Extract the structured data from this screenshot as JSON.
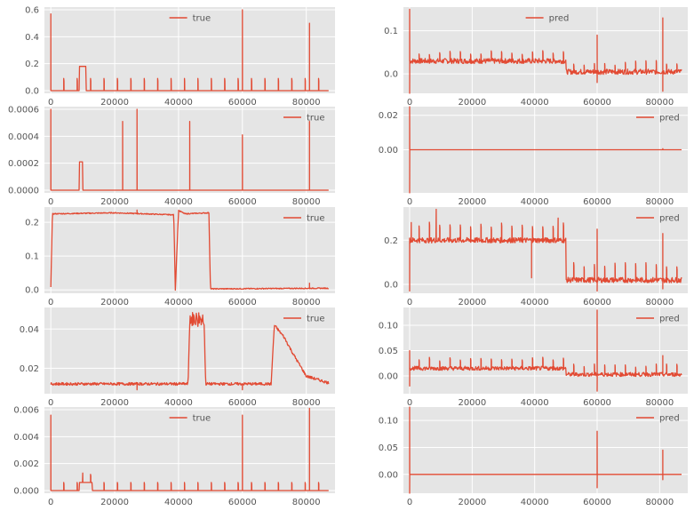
{
  "colors": {
    "background": "#e5e5e5",
    "grid": "#ffffff",
    "line": "#e24a33",
    "tick_text": "#555555",
    "legend_text": "#222222"
  },
  "chart_data": [
    {
      "type": "line",
      "series_name": "true",
      "legend_position": "top-center",
      "xlim": [
        -2000,
        89000
      ],
      "ylim": [
        -0.02,
        0.62
      ],
      "xticks": [
        0,
        20000,
        40000,
        60000,
        80000
      ],
      "xtick_labels": [
        "0",
        "20000",
        "40000",
        "60000",
        "80000"
      ],
      "yticks": [
        0.0,
        0.2,
        0.4,
        0.6
      ],
      "ytick_labels": [
        "0.0",
        "0.2",
        "0.4",
        "0.6"
      ],
      "pattern": {
        "base": 0.0,
        "spikes": [
          [
            0,
            0.57
          ],
          [
            60000,
            0.6
          ],
          [
            81000,
            0.5
          ]
        ],
        "steps": [
          [
            9000,
            11000,
            0.18
          ]
        ],
        "period": 4200,
        "period_amp": 0.09,
        "period_start": 4000
      }
    },
    {
      "type": "line",
      "series_name": "pred",
      "legend_position": "top-center",
      "xlim": [
        -2000,
        89000
      ],
      "ylim": [
        -0.045,
        0.155
      ],
      "xticks": [
        0,
        20000,
        40000,
        60000,
        80000
      ],
      "xtick_labels": [
        "0",
        "20000",
        "40000",
        "60000",
        "80000"
      ],
      "yticks": [
        0.0,
        0.1
      ],
      "ytick_labels": [
        "0.0",
        "0.1"
      ],
      "pattern": {
        "base": 0.03,
        "base2": 0.005,
        "switch_x": 50000,
        "noise": 0.006,
        "spikes": [
          [
            0,
            0.15
          ],
          [
            0,
            -0.045
          ],
          [
            60000,
            -0.02
          ],
          [
            60000,
            0.09
          ],
          [
            81000,
            0.13
          ],
          [
            81000,
            -0.04
          ]
        ],
        "period": 3300,
        "period_amp": 0.02,
        "period_start": 3000
      }
    },
    {
      "type": "line",
      "series_name": "true",
      "legend_position": "top-right",
      "xlim": [
        -2000,
        89000
      ],
      "ylim": [
        -2e-05,
        0.00062
      ],
      "xticks": [
        0,
        20000,
        40000,
        60000,
        80000
      ],
      "xtick_labels": [
        "0",
        "20000",
        "40000",
        "60000",
        "80000"
      ],
      "yticks": [
        0.0,
        0.0002,
        0.0004,
        0.0006
      ],
      "ytick_labels": [
        "0.0000",
        "0.0002",
        "0.0004",
        "0.0006"
      ],
      "pattern": {
        "base": 0.0,
        "spikes": [
          [
            0,
            0.0006
          ],
          [
            22500,
            0.00051
          ],
          [
            27000,
            0.0006
          ],
          [
            43500,
            0.00051
          ],
          [
            60000,
            0.00041
          ],
          [
            81000,
            0.00051
          ]
        ],
        "steps": [
          [
            9000,
            10000,
            0.00021
          ]
        ]
      }
    },
    {
      "type": "line",
      "series_name": "pred",
      "legend_position": "top-right",
      "xlim": [
        -2000,
        89000
      ],
      "ylim": [
        -0.025,
        0.025
      ],
      "xticks": [
        0,
        20000,
        40000,
        60000,
        80000
      ],
      "xtick_labels": [
        "0",
        "20000",
        "40000",
        "60000",
        "80000"
      ],
      "yticks": [
        0.0,
        0.02
      ],
      "ytick_labels": [
        "0.00",
        "0.02"
      ],
      "pattern": {
        "base": 0.0,
        "spikes": [
          [
            0,
            0.025
          ],
          [
            0,
            -0.025
          ],
          [
            81000,
            0.0006
          ]
        ]
      }
    },
    {
      "type": "line",
      "series_name": "true",
      "legend_position": "top-right",
      "xlim": [
        -2000,
        89000
      ],
      "ylim": [
        -0.01,
        0.245
      ],
      "xticks": [
        0,
        20000,
        40000,
        60000,
        80000
      ],
      "xtick_labels": [
        "0",
        "20000",
        "40000",
        "60000",
        "80000"
      ],
      "yticks": [
        0.0,
        0.1,
        0.2
      ],
      "ytick_labels": [
        "0.0",
        "0.1",
        "0.2"
      ],
      "pattern": {
        "piecewise": [
          [
            0,
            0.01
          ],
          [
            500,
            0.225
          ],
          [
            20000,
            0.228
          ],
          [
            38500,
            0.222
          ],
          [
            39000,
            0.0
          ],
          [
            40000,
            0.235
          ],
          [
            42000,
            0.225
          ],
          [
            49500,
            0.228
          ],
          [
            50000,
            0.003
          ],
          [
            88000,
            0.005
          ]
        ],
        "noise": 0.0015,
        "spikes": [
          [
            27000,
            0.236
          ],
          [
            81000,
            0.02
          ]
        ]
      }
    },
    {
      "type": "line",
      "series_name": "pred",
      "legend_position": "top-right",
      "xlim": [
        -2000,
        89000
      ],
      "ylim": [
        -0.04,
        0.35
      ],
      "xticks": [
        0,
        20000,
        40000,
        60000,
        80000
      ],
      "xtick_labels": [
        "0",
        "20000",
        "40000",
        "60000",
        "80000"
      ],
      "yticks": [
        0.0,
        0.2
      ],
      "ytick_labels": [
        "0.0",
        "0.2"
      ],
      "pattern": {
        "base": 0.2,
        "base2": 0.02,
        "switch_x": 50000,
        "noise": 0.012,
        "spikes": [
          [
            0,
            -0.03
          ],
          [
            500,
            0.28
          ],
          [
            8500,
            0.34
          ],
          [
            39000,
            0.03
          ],
          [
            47500,
            0.3
          ],
          [
            60000,
            0.25
          ],
          [
            60000,
            -0.03
          ],
          [
            81000,
            0.23
          ],
          [
            81000,
            -0.02
          ]
        ],
        "period": 3300,
        "period_amp": 0.07,
        "period_start": 3000
      }
    },
    {
      "type": "line",
      "series_name": "true",
      "legend_position": "top-right",
      "xlim": [
        -2000,
        89000
      ],
      "ylim": [
        0.007,
        0.051
      ],
      "xticks": [
        0,
        20000,
        40000,
        60000,
        80000
      ],
      "xtick_labels": [
        "0",
        "20000",
        "40000",
        "60000",
        "80000"
      ],
      "yticks": [
        0.02,
        0.04
      ],
      "ytick_labels": [
        "0.02",
        "0.04"
      ],
      "pattern": {
        "piecewise": [
          [
            0,
            0.012
          ],
          [
            43000,
            0.012
          ],
          [
            43500,
            0.045
          ],
          [
            48000,
            0.045
          ],
          [
            48500,
            0.012
          ],
          [
            69000,
            0.012
          ],
          [
            70000,
            0.042
          ],
          [
            73000,
            0.036
          ],
          [
            76000,
            0.027
          ],
          [
            80000,
            0.016
          ],
          [
            88000,
            0.012
          ]
        ],
        "noise": 0.0007,
        "burst": [
          [
            43500,
            48000,
            0.004
          ]
        ],
        "spikes": [
          [
            27000,
            0.009
          ],
          [
            60000,
            0.009
          ]
        ]
      }
    },
    {
      "type": "line",
      "series_name": "pred",
      "legend_position": "top-right",
      "xlim": [
        -2000,
        89000
      ],
      "ylim": [
        -0.035,
        0.135
      ],
      "xticks": [
        0,
        20000,
        40000,
        60000,
        80000
      ],
      "xtick_labels": [
        "0",
        "20000",
        "40000",
        "60000",
        "80000"
      ],
      "yticks": [
        0.0,
        0.05,
        0.1
      ],
      "ytick_labels": [
        "0.00",
        "0.05",
        "0.10"
      ],
      "pattern": {
        "base": 0.015,
        "base2": 0.003,
        "switch_x": 50000,
        "noise": 0.004,
        "spikes": [
          [
            0,
            0.05
          ],
          [
            0,
            -0.02
          ],
          [
            60000,
            0.13
          ],
          [
            60000,
            -0.03
          ],
          [
            81000,
            0.04
          ]
        ],
        "period": 3300,
        "period_amp": 0.018,
        "period_start": 3000
      }
    },
    {
      "type": "line",
      "series_name": "true",
      "legend_position": "top-center",
      "xlim": [
        -2000,
        89000
      ],
      "ylim": [
        -0.0002,
        0.0062
      ],
      "xticks": [
        0,
        20000,
        40000,
        60000,
        80000
      ],
      "xtick_labels": [
        "0",
        "20000",
        "40000",
        "60000",
        "80000"
      ],
      "yticks": [
        0.0,
        0.002,
        0.004,
        0.006
      ],
      "ytick_labels": [
        "0.000",
        "0.002",
        "0.004",
        "0.006"
      ],
      "pattern": {
        "base": 0.0,
        "spikes": [
          [
            0,
            0.0056
          ],
          [
            60000,
            0.0056
          ],
          [
            81000,
            0.0061
          ],
          [
            10000,
            0.0013
          ]
        ],
        "steps": [
          [
            9000,
            13000,
            0.0006
          ]
        ],
        "period": 4200,
        "period_amp": 0.0006,
        "period_start": 4000
      }
    },
    {
      "type": "line",
      "series_name": "pred",
      "legend_position": "top-right",
      "xlim": [
        -2000,
        89000
      ],
      "ylim": [
        -0.035,
        0.125
      ],
      "xticks": [
        0,
        20000,
        40000,
        60000,
        80000
      ],
      "xtick_labels": [
        "0",
        "20000",
        "40000",
        "60000",
        "80000"
      ],
      "yticks": [
        0.0,
        0.05,
        0.1
      ],
      "ytick_labels": [
        "0.00",
        "0.05",
        "0.10"
      ],
      "pattern": {
        "base": 0.0,
        "spikes": [
          [
            0,
            0.125
          ],
          [
            0,
            -0.035
          ],
          [
            60000,
            0.08
          ],
          [
            60000,
            -0.025
          ],
          [
            81000,
            0.045
          ],
          [
            81000,
            -0.01
          ]
        ]
      }
    }
  ]
}
